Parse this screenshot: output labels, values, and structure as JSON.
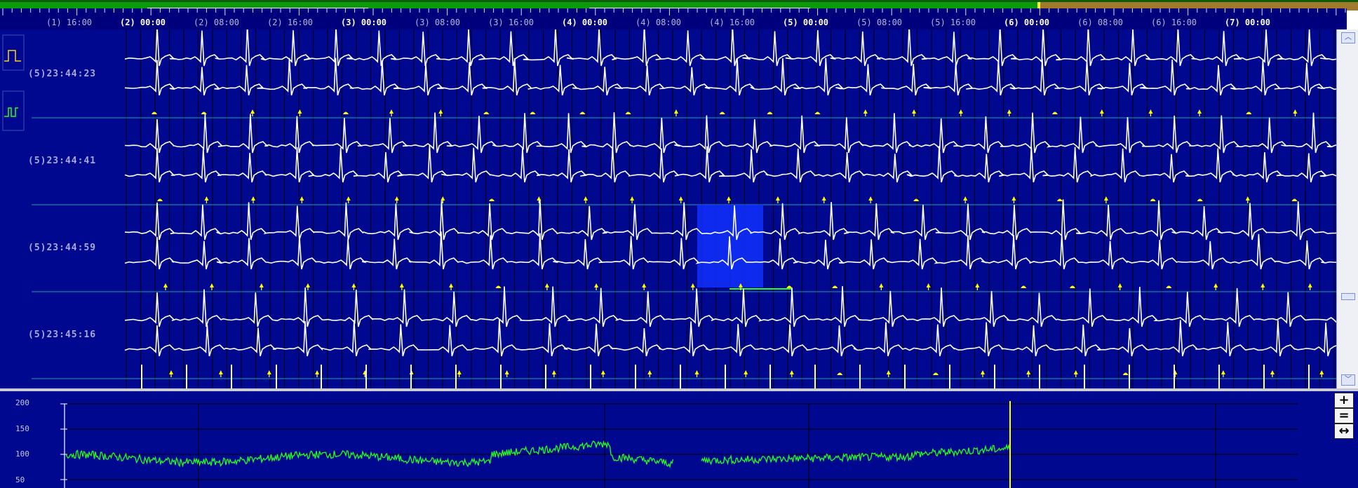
{
  "progress": {
    "played_color": "#0a9a0a",
    "remaining_color": "#a07a2a",
    "played_fraction": 0.765
  },
  "timeline": {
    "labels": [
      "(1) 16:00",
      "(2) 00:00",
      "(2) 08:00",
      "(2) 16:00",
      "(3) 00:00",
      "(3) 08:00",
      "(3) 16:00",
      "(4) 00:00",
      "(4) 08:00",
      "(4) 16:00",
      "(5) 00:00",
      "(5) 08:00",
      "(5) 16:00",
      "(6) 00:00",
      "(6) 08:00",
      "(6) 16:00",
      "(7) 00:00"
    ]
  },
  "ecg": {
    "rows": [
      {
        "time": "(5)23:44:23"
      },
      {
        "time": "(5)23:44:41"
      },
      {
        "time": "(5)23:44:59"
      },
      {
        "time": "(5)23:45:16"
      }
    ],
    "trace_color": "#ffffff",
    "marker_color": "#ffff00",
    "background": "#00088f",
    "highlight_color": "#1030ff"
  },
  "scrollbar": {
    "up_icon": "chevron-up-icon",
    "down_icon": "chevron-down-icon",
    "thumb_icon": "scroll-thumb-icon"
  },
  "heart_rate": {
    "y_ticks": [
      "200",
      "150",
      "100",
      "50"
    ],
    "trace_color": "#22ff22",
    "cursor_color": "#ffff00"
  },
  "controls": {
    "zoom_in_label": "+",
    "zoom_out_label": "=",
    "fit_label": "↔"
  }
}
